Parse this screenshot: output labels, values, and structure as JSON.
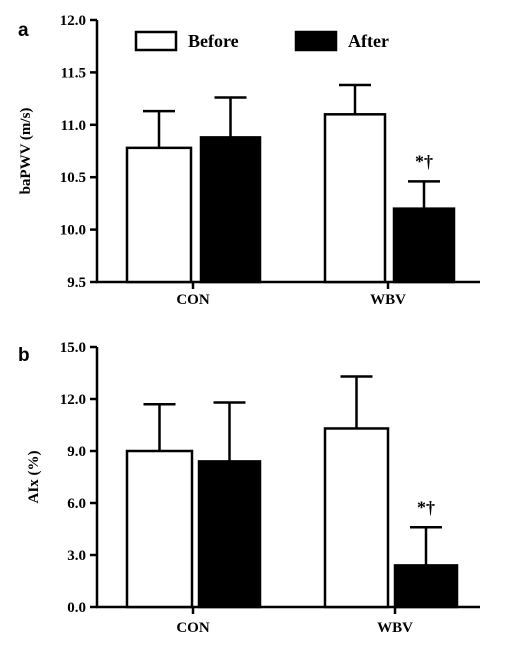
{
  "chart_data": [
    {
      "type": "bar",
      "panel": "a",
      "ylabel": "baPWV (m/s)",
      "categories": [
        "CON",
        "WBV"
      ],
      "ylim": [
        9.5,
        12.0
      ],
      "yticks": [
        "9.5",
        "10.0",
        "10.5",
        "11.0",
        "11.5",
        "12.0"
      ],
      "series": [
        {
          "name": "Before",
          "values": [
            10.78,
            11.1
          ],
          "error": [
            0.35,
            0.28
          ],
          "color": "#ffffff"
        },
        {
          "name": "After",
          "values": [
            10.88,
            10.2
          ],
          "error": [
            0.38,
            0.26
          ],
          "color": "#000000"
        }
      ],
      "annotations": [
        {
          "category": "WBV",
          "series": "After",
          "text": "*†"
        }
      ],
      "legend": "top"
    },
    {
      "type": "bar",
      "panel": "b",
      "ylabel": "AIx (%)",
      "categories": [
        "CON",
        "WBV"
      ],
      "ylim": [
        0.0,
        15.0
      ],
      "yticks": [
        "0.0",
        "3.0",
        "6.0",
        "9.0",
        "12.0",
        "15.0"
      ],
      "series": [
        {
          "name": "Before",
          "values": [
            9.0,
            10.3
          ],
          "error": [
            2.7,
            3.0
          ],
          "color": "#ffffff"
        },
        {
          "name": "After",
          "values": [
            8.4,
            2.4
          ],
          "error": [
            3.4,
            2.2
          ],
          "color": "#000000"
        }
      ],
      "annotations": [
        {
          "category": "WBV",
          "series": "After",
          "text": "*†"
        }
      ]
    }
  ]
}
